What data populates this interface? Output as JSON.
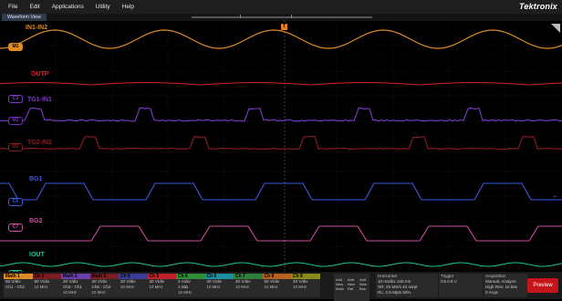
{
  "menu": {
    "items": [
      "File",
      "Edit",
      "Applications",
      "Utility",
      "Help"
    ],
    "brand": "Tektronix"
  },
  "tab": {
    "label": "Waveform View"
  },
  "trigger_marker": "T",
  "traces": [
    {
      "label": "IN1-IN2",
      "marker": "M1",
      "color": "#e08a22"
    },
    {
      "label": "OUTP",
      "marker": "",
      "color": "#d6242f"
    },
    {
      "label": "TG1-IN1",
      "marker": "C3",
      "color": "#7a3cc9"
    },
    {
      "label": "",
      "marker": "M2",
      "color": "#6c2fb8"
    },
    {
      "label": "TG2-IN2",
      "marker": "M3",
      "color": "#8e1b22"
    },
    {
      "label": "BG1",
      "marker": "C6",
      "color": "#3d5be0"
    },
    {
      "label": "BG2",
      "marker": "C7",
      "color": "#d04aa0"
    },
    {
      "label": "IOUT",
      "marker": "C8",
      "color": "#1cc49a"
    }
  ],
  "channels": [
    {
      "name": "Math 1",
      "line1": "50 V/div",
      "line2": "Ch1 - Ch2",
      "line3": "",
      "color": "#e08a22"
    },
    {
      "name": "Ch 3",
      "line1": "50 V/div",
      "line2": "",
      "line3": "10 MHz",
      "color": "#7a1c22"
    },
    {
      "name": "Math 2",
      "line1": "20 V/div",
      "line2": "Ch3 - Ch1",
      "line3": "10 MHz",
      "color": "#6a3fb0"
    },
    {
      "name": "Math 3",
      "line1": "20 V/div",
      "line2": "Ch5 - Ch2",
      "line3": "10 MHz",
      "color": "#7a1c22"
    },
    {
      "name": "Ch 6",
      "line1": "20 V/div",
      "line2": "",
      "line3": "10 MHz",
      "color": "#3a3a9a"
    },
    {
      "name": "Ch 5",
      "line1": "20 V/div",
      "line2": "",
      "line3": "10 MHz",
      "color": "#c0212b"
    },
    {
      "name": "Ch 6",
      "line1": "2 A/div",
      "line2": "1 MΩ",
      "line3": "10 MHz",
      "color": "#2f8f3a"
    },
    {
      "name": "Ch 6",
      "line1": "20 V/div",
      "line2": "",
      "line3": "10 MHz",
      "color": "#1a8fa0"
    },
    {
      "name": "Ch 7",
      "line1": "20 V/div",
      "line2": "",
      "line3": "10 MHz",
      "color": "#2e7f3a"
    },
    {
      "name": "Ch 8",
      "line1": "50 V/div",
      "line2": "",
      "line3": "10 MHz",
      "color": "#b8621f"
    },
    {
      "name": "Ch 8",
      "line1": "20 V/div",
      "line2": "",
      "line3": "10 MHz",
      "color": "#8a8a1e"
    }
  ],
  "add_buttons": [
    "Add New Math",
    "Add New Ref",
    "Add New Bus"
  ],
  "horizontal": {
    "title": "Horizontal",
    "l1": "10 ms/div",
    "l2": "SR: 25 MS/s",
    "l3": "RL: 2.5 Mpts",
    "r1": "100 ms",
    "r2": "40 ns/pt",
    "r3": "50%"
  },
  "trigger": {
    "title": "Trigger",
    "l1": "C6",
    "l2": "0.8 V"
  },
  "acquisition": {
    "title": "Acquisition",
    "l1": "Manual,",
    "l2": "High Res: 16 bits",
    "l3": "0 Acqs",
    "r1": "Analyze"
  },
  "preview_label": "Preview"
}
